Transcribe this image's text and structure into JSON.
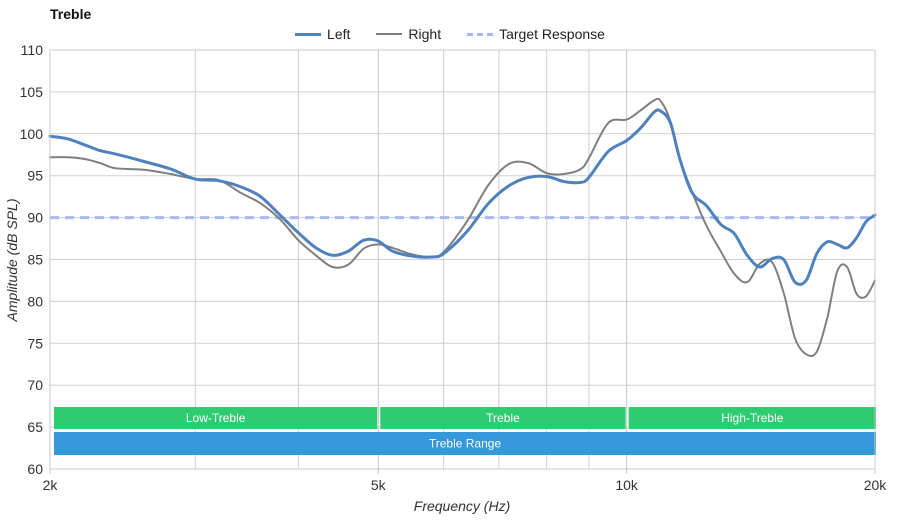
{
  "chart_data": {
    "type": "line",
    "title": "Treble",
    "xlabel": "Frequency (Hz)",
    "ylabel": "Amplitude (dB SPL)",
    "x_scale": "log",
    "xlim": [
      2000,
      20000
    ],
    "ylim": [
      60,
      110
    ],
    "x_ticks": [
      {
        "value": 2000,
        "label": "2k"
      },
      {
        "value": 5000,
        "label": "5k"
      },
      {
        "value": 10000,
        "label": "10k"
      },
      {
        "value": 20000,
        "label": "20k"
      }
    ],
    "x_minor_ticks": [
      3000,
      4000,
      6000,
      7000,
      8000,
      9000
    ],
    "y_ticks": [
      60,
      65,
      70,
      75,
      80,
      85,
      90,
      95,
      100,
      105,
      110
    ],
    "grid": true,
    "legend_position": "top-center",
    "series": [
      {
        "name": "Left",
        "color": "#4f81bd",
        "style": "thick",
        "x": [
          2000,
          2100,
          2200,
          2300,
          2400,
          2600,
          2800,
          3000,
          3200,
          3400,
          3600,
          3800,
          4000,
          4200,
          4400,
          4600,
          4800,
          5000,
          5200,
          5500,
          5800,
          6000,
          6400,
          6800,
          7200,
          7600,
          8000,
          8400,
          8800,
          9000,
          9500,
          10000,
          10400,
          10800,
          11000,
          11300,
          11600,
          12000,
          12500,
          13000,
          13500,
          14000,
          14500,
          15000,
          15500,
          16000,
          16500,
          17000,
          17500,
          18000,
          18500,
          19000,
          19500,
          20000
        ],
        "values": [
          99.7,
          99.4,
          98.7,
          98.0,
          97.6,
          96.7,
          95.8,
          94.6,
          94.4,
          93.7,
          92.5,
          90.3,
          88.2,
          86.4,
          85.5,
          86.0,
          87.3,
          87.2,
          86.0,
          85.4,
          85.3,
          85.7,
          88.3,
          91.7,
          93.8,
          94.8,
          94.9,
          94.3,
          94.2,
          94.8,
          97.9,
          99.2,
          100.7,
          102.6,
          102.7,
          101.3,
          97.0,
          93.0,
          91.4,
          89.2,
          88.1,
          85.5,
          84.1,
          85.1,
          85.0,
          82.3,
          82.5,
          85.7,
          87.1,
          86.8,
          86.4,
          87.6,
          89.5,
          90.3
        ]
      },
      {
        "name": "Right",
        "color": "#7f7f7f",
        "style": "thin",
        "x": [
          2000,
          2100,
          2200,
          2300,
          2400,
          2600,
          2800,
          3000,
          3200,
          3400,
          3600,
          3800,
          4000,
          4200,
          4400,
          4600,
          4800,
          5000,
          5200,
          5500,
          5800,
          6000,
          6400,
          6800,
          7200,
          7600,
          8000,
          8400,
          8800,
          9000,
          9500,
          10000,
          10400,
          10800,
          11000,
          11300,
          11600,
          12000,
          12500,
          13000,
          13500,
          14000,
          14500,
          15000,
          15500,
          16000,
          16500,
          17000,
          17500,
          18000,
          18500,
          19000,
          19500,
          20000
        ],
        "values": [
          97.2,
          97.2,
          97.0,
          96.5,
          95.9,
          95.7,
          95.2,
          94.6,
          94.5,
          93.0,
          91.7,
          89.8,
          87.3,
          85.5,
          84.1,
          84.4,
          86.3,
          86.8,
          86.4,
          85.6,
          85.3,
          85.9,
          89.5,
          93.9,
          96.4,
          96.5,
          95.3,
          95.2,
          95.8,
          97.1,
          101.3,
          101.7,
          102.8,
          104.0,
          103.9,
          101.5,
          97.0,
          93.1,
          89.0,
          86.0,
          83.3,
          82.3,
          84.5,
          84.7,
          81.0,
          75.6,
          73.7,
          74.0,
          78.0,
          83.6,
          84.1,
          80.9,
          80.6,
          82.5
        ]
      },
      {
        "name": "Target Response",
        "color": "#a8b8f4",
        "style": "dashed",
        "x": [
          2000,
          20000
        ],
        "values": [
          90,
          90
        ]
      }
    ],
    "bands": [
      {
        "label": "Low-Treble",
        "start": 2000,
        "end": 5000,
        "color": "#2ecc71",
        "row": 1
      },
      {
        "label": "Treble",
        "start": 5000,
        "end": 10000,
        "color": "#2ecc71",
        "row": 1
      },
      {
        "label": "High-Treble",
        "start": 10000,
        "end": 20000,
        "color": "#2ecc71",
        "row": 1
      },
      {
        "label": "Treble Range",
        "start": 2000,
        "end": 20000,
        "color": "#3498db",
        "row": 2
      }
    ]
  }
}
